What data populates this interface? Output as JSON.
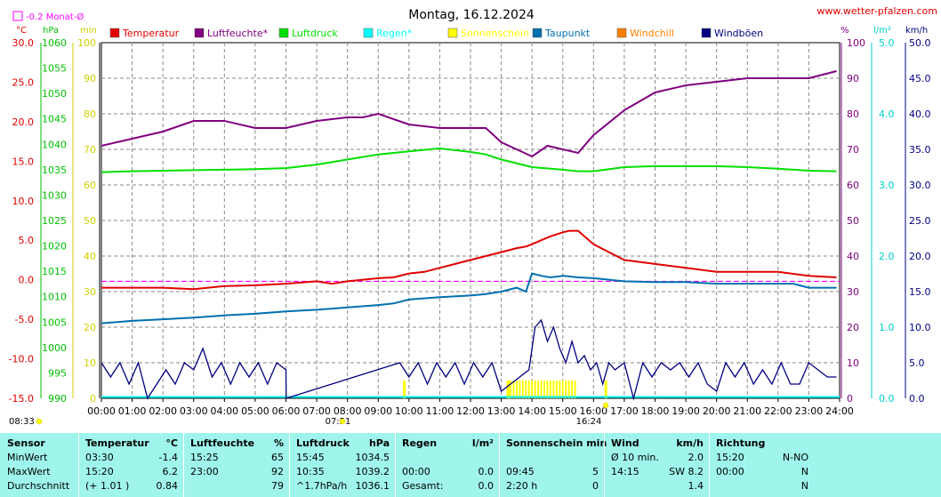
{
  "header": {
    "title": "Montag, 16.12.2024",
    "site": "www.wetter-pfalzen.com",
    "month_avg_label": "-0.2 Monat-Ø"
  },
  "axis_units": {
    "left_temp": "°C",
    "left_pressure": "hPa",
    "left_minutes": "min",
    "right_percent": "%",
    "right_rain": "l/m²",
    "right_wind": "km/h"
  },
  "legend": [
    {
      "label": "Temperatur",
      "color": "#e00000"
    },
    {
      "label": "Luftfeuchte*",
      "color": "#800080"
    },
    {
      "label": "Luftdruck",
      "color": "#00e000"
    },
    {
      "label": "Regen*",
      "color": "#00ffff"
    },
    {
      "label": "Sonnenschein",
      "color": "#ffff00"
    },
    {
      "label": "Taupunkt",
      "color": "#0070b0"
    },
    {
      "label": "Windchill",
      "color": "#ff8000"
    },
    {
      "label": "Windböen",
      "color": "#000080"
    }
  ],
  "sun_events": {
    "sunrise": "07:51",
    "sunset": "16:24",
    "daylength_start": "08:33"
  },
  "chart_data": {
    "type": "line",
    "title": "Montag, 16.12.2024",
    "x_range_hours": [
      0,
      24
    ],
    "x_ticks": [
      "00:00",
      "01:00",
      "02:00",
      "03:00",
      "04:00",
      "05:00",
      "06:00",
      "07:00",
      "08:00",
      "09:00",
      "10:00",
      "11:00",
      "12:00",
      "13:00",
      "14:00",
      "15:00",
      "16:00",
      "17:00",
      "18:00",
      "19:00",
      "20:00",
      "21:00",
      "22:00",
      "23:00",
      "24:00"
    ],
    "axes": {
      "temperature": {
        "unit": "°C",
        "range": [
          -15,
          30
        ],
        "ticks": [
          "-15.0",
          "-10.0",
          "-5.0",
          "0.0",
          "5.0",
          "10.0",
          "15.0",
          "20.0",
          "25.0",
          "30.0"
        ]
      },
      "pressure": {
        "unit": "hPa",
        "range": [
          990,
          1060
        ],
        "ticks": [
          "990",
          "995",
          "1000",
          "1005",
          "1010",
          "1015",
          "1020",
          "1025",
          "1030",
          "1035",
          "1040",
          "1045",
          "1050",
          "1055",
          "1060"
        ]
      },
      "minutes": {
        "unit": "min",
        "range": [
          0,
          100
        ],
        "ticks": [
          "0",
          "10",
          "20",
          "30",
          "40",
          "50",
          "60",
          "70",
          "80",
          "90",
          "100"
        ]
      },
      "percent": {
        "unit": "%",
        "range": [
          0,
          100
        ],
        "ticks": [
          "0",
          "10",
          "20",
          "30",
          "40",
          "50",
          "60",
          "70",
          "80",
          "90",
          "100"
        ]
      },
      "rain": {
        "unit": "l/m²",
        "range": [
          0,
          5
        ],
        "ticks": [
          "0.0",
          "1.0",
          "2.0",
          "3.0",
          "4.0",
          "5.0"
        ]
      },
      "wind": {
        "unit": "km/h",
        "range": [
          0,
          50
        ],
        "ticks": [
          "0.0",
          "5.0",
          "10.0",
          "15.0",
          "20.0",
          "25.0",
          "30.0",
          "35.0",
          "40.0",
          "45.0",
          "50.0"
        ]
      }
    },
    "month_avg_temp": -0.2,
    "series": [
      {
        "name": "Temperatur",
        "axis": "temperature",
        "color": "#e00000",
        "x": [
          0,
          1,
          2,
          3,
          4,
          5,
          6,
          7,
          7.5,
          8,
          9,
          9.5,
          10,
          10.5,
          11,
          11.5,
          12,
          12.5,
          13,
          13.5,
          13.8,
          14,
          14.3,
          14.6,
          15,
          15.2,
          15.5,
          16,
          16.5,
          17,
          18,
          19,
          20,
          21,
          22,
          23,
          23.9
        ],
        "y": [
          -1.0,
          -1.0,
          -1.0,
          -1.2,
          -0.8,
          -0.7,
          -0.5,
          -0.2,
          -0.5,
          -0.2,
          0.2,
          0.3,
          0.8,
          1.0,
          1.5,
          2.0,
          2.5,
          3.0,
          3.5,
          4.0,
          4.2,
          4.5,
          5.0,
          5.5,
          6.0,
          6.2,
          6.2,
          4.5,
          3.5,
          2.5,
          2.0,
          1.5,
          1.0,
          1.0,
          1.0,
          0.5,
          0.3
        ]
      },
      {
        "name": "Luftfeuchte*",
        "axis": "percent",
        "color": "#800080",
        "x": [
          0,
          0.5,
          1,
          2,
          3,
          4,
          5,
          6,
          7,
          8,
          8.5,
          9,
          10,
          11,
          12,
          12.5,
          13,
          13.5,
          14,
          14.5,
          15,
          15.5,
          16,
          17,
          18,
          19,
          20,
          21,
          22,
          23,
          23.9
        ],
        "y": [
          71,
          72,
          73,
          75,
          78,
          78,
          76,
          76,
          78,
          79,
          79,
          80,
          77,
          76,
          76,
          76,
          72,
          70,
          68,
          71,
          70,
          69,
          74,
          81,
          86,
          88,
          89,
          90,
          90,
          90,
          92
        ]
      },
      {
        "name": "Luftdruck",
        "axis": "pressure",
        "color": "#00e000",
        "x": [
          0,
          1,
          2,
          3,
          4,
          5,
          6,
          7,
          8,
          9,
          10,
          11,
          12,
          12.5,
          13,
          14,
          15,
          15.5,
          16,
          17,
          18,
          19,
          20,
          21,
          22,
          23,
          23.9
        ],
        "y": [
          1034.5,
          1034.7,
          1034.8,
          1034.9,
          1035,
          1035.1,
          1035.3,
          1036,
          1037,
          1038,
          1038.6,
          1039.2,
          1038.5,
          1038,
          1037,
          1035.5,
          1035,
          1034.7,
          1034.7,
          1035.5,
          1035.7,
          1035.7,
          1035.7,
          1035.5,
          1035.2,
          1034.8,
          1034.7
        ]
      },
      {
        "name": "Taupunkt",
        "axis": "temperature",
        "color": "#0070b0",
        "x": [
          0,
          1,
          2,
          3,
          4,
          5,
          6,
          7,
          8,
          9,
          9.5,
          10,
          11,
          12,
          12.5,
          13,
          13.5,
          13.8,
          14,
          14.3,
          14.6,
          15,
          15.5,
          16,
          17,
          18,
          19,
          20,
          21,
          22,
          22.5,
          23,
          23.9
        ],
        "y": [
          -5.5,
          -5.2,
          -5.0,
          -4.8,
          -4.5,
          -4.3,
          -4.0,
          -3.8,
          -3.5,
          -3.2,
          -3.0,
          -2.5,
          -2.2,
          -2.0,
          -1.8,
          -1.5,
          -1.0,
          -1.5,
          0.8,
          0.5,
          0.3,
          0.5,
          0.3,
          0.2,
          -0.2,
          -0.3,
          -0.3,
          -0.5,
          -0.5,
          -0.5,
          -0.5,
          -1.0,
          -1.0
        ]
      },
      {
        "name": "Windböen",
        "axis": "wind",
        "color": "#000080",
        "x": [
          0,
          0.3,
          0.6,
          0.9,
          1.2,
          1.5,
          1.8,
          2.1,
          2.4,
          2.7,
          3.0,
          3.3,
          3.6,
          3.9,
          4.2,
          4.5,
          4.8,
          5.1,
          5.4,
          5.7,
          6.0,
          6.01,
          9.7,
          10,
          10.3,
          10.6,
          10.9,
          11.2,
          11.5,
          11.8,
          12.1,
          12.4,
          12.7,
          13.0,
          13.3,
          13.6,
          13.9,
          14.1,
          14.3,
          14.5,
          14.7,
          14.9,
          15.1,
          15.3,
          15.5,
          15.7,
          15.9,
          16.1,
          16.3,
          16.5,
          16.7,
          17.0,
          17.3,
          17.6,
          17.9,
          18.2,
          18.5,
          18.8,
          19.1,
          19.4,
          19.7,
          20.0,
          20.3,
          20.6,
          20.9,
          21.2,
          21.5,
          21.8,
          22.1,
          22.4,
          22.7,
          23.0,
          23.3,
          23.6,
          23.9
        ],
        "y": [
          5,
          3,
          5,
          2,
          5,
          0,
          2,
          4,
          2,
          5,
          4,
          7,
          3,
          5,
          2,
          5,
          3,
          5,
          2,
          5,
          4,
          0,
          5,
          3,
          5,
          2,
          5,
          3,
          5,
          2,
          5,
          3,
          5,
          1,
          2,
          3,
          4,
          10,
          11,
          8,
          10,
          7,
          5,
          8,
          5,
          6,
          4,
          5,
          2,
          5,
          4,
          5,
          0,
          5,
          3,
          5,
          4,
          5,
          3,
          5,
          2,
          1,
          5,
          3,
          5,
          2,
          4,
          2,
          5,
          2,
          2,
          5,
          4,
          3,
          3
        ]
      }
    ],
    "sunshine_bars": {
      "name": "Sonnenschein",
      "axis": "minutes",
      "color": "#ffff00",
      "x_range": [
        13.2,
        15.4
      ],
      "values_min": 5
    },
    "sunshine_marks": {
      "x": [
        9.85,
        13.25,
        16.4
      ]
    }
  },
  "stats": {
    "groups": [
      {
        "header": [
          "Sensor"
        ],
        "rows": [
          [
            "MinWert"
          ],
          [
            "MaxWert"
          ],
          [
            "Durchschnitt"
          ]
        ]
      },
      {
        "header": [
          "Temperatur",
          "°C"
        ],
        "rows": [
          [
            "03:30",
            "-1.4"
          ],
          [
            "15:20",
            "6.2"
          ],
          [
            "(+ 1.01 )",
            "0.84"
          ]
        ]
      },
      {
        "header": [
          "Luftfeuchte",
          "%"
        ],
        "rows": [
          [
            "15:25",
            "65"
          ],
          [
            "23:00",
            "92"
          ],
          [
            "",
            "79"
          ]
        ]
      },
      {
        "header": [
          "Luftdruck",
          "hPa"
        ],
        "rows": [
          [
            "15:45",
            "1034.5"
          ],
          [
            "10:35",
            "1039.2"
          ],
          [
            "^1.7hPa/h",
            "1036.1"
          ]
        ]
      },
      {
        "header": [
          "Regen",
          "l/m²"
        ],
        "rows": [
          [
            "",
            ""
          ],
          [
            "00:00",
            "0.0"
          ],
          [
            "Gesamt:",
            "0.0"
          ]
        ]
      },
      {
        "header": [
          "Sonnenschein min",
          ""
        ],
        "rows": [
          [
            "",
            ""
          ],
          [
            "09:45",
            "5"
          ],
          [
            "2:20 h",
            "0"
          ]
        ]
      },
      {
        "header": [
          "Wind",
          "km/h"
        ],
        "rows": [
          [
            "Ø 10 min.",
            "2.0"
          ],
          [
            "14:15",
            "SW 8.2"
          ],
          [
            "",
            "1.4"
          ]
        ]
      },
      {
        "header": [
          "Richtung",
          ""
        ],
        "rows": [
          [
            "15:20",
            "N-NO"
          ],
          [
            "00:00",
            "N"
          ],
          [
            "",
            "N"
          ]
        ]
      }
    ]
  }
}
